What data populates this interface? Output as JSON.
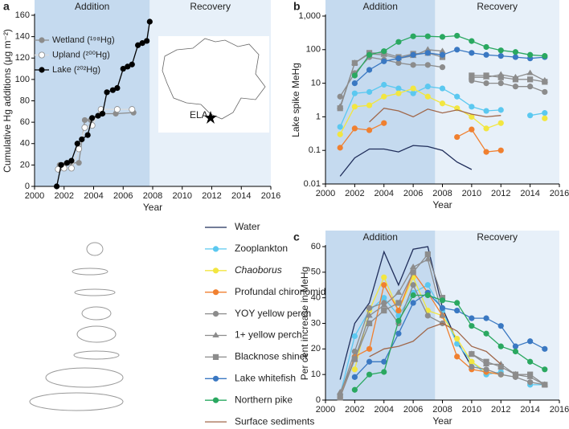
{
  "chart_data": [
    {
      "type": "line",
      "letter": "a",
      "xlabel": "Year",
      "ylabel": "Cumulative Hg additions (μg m⁻²)",
      "xlim": [
        2000,
        2016
      ],
      "xticks": [
        2000,
        2002,
        2004,
        2006,
        2008,
        2010,
        2012,
        2014,
        2016
      ],
      "ylim": [
        0,
        160
      ],
      "yticks": [
        0,
        20,
        40,
        60,
        80,
        100,
        120,
        140,
        160
      ],
      "periods": [
        {
          "label": "Addition",
          "from": 2000,
          "to": 2007.8,
          "color": "#c5daef"
        },
        {
          "label": "Recovery",
          "from": 2007.8,
          "to": 2016,
          "color": "#e7f0f9"
        }
      ],
      "inset_label": "ELA",
      "series": [
        {
          "name": "Wetland (¹⁹⁸Hg)",
          "color": "#8c8c8c",
          "x": [
            2001.7,
            2002,
            2002.5,
            2003,
            2003.4,
            2003.8,
            2004.5,
            2005.5,
            2006.7
          ],
          "values": [
            20,
            20,
            22,
            22,
            62,
            62,
            68,
            68,
            69
          ]
        },
        {
          "name": "Upland (²⁰⁰Hg)",
          "color": "#ffffff",
          "x": [
            2001.6,
            2002,
            2002.5,
            2003,
            2003.4,
            2003.9,
            2004.5,
            2005.6,
            2006.6
          ],
          "values": [
            16,
            17,
            17,
            35,
            55,
            57,
            72,
            72,
            72
          ]
        },
        {
          "name": "Lake (²⁰²Hg)",
          "color": "#000000",
          "x": [
            2001.5,
            2001.8,
            2002.2,
            2002.5,
            2002.9,
            2003.2,
            2003.6,
            2003.9,
            2004.3,
            2004.6,
            2004.9,
            2005.3,
            2005.6,
            2006,
            2006.3,
            2006.6,
            2007,
            2007.3,
            2007.6,
            2007.8
          ],
          "values": [
            0,
            20,
            22,
            24,
            40,
            44,
            48,
            64,
            66,
            68,
            88,
            90,
            92,
            110,
            112,
            114,
            132,
            134,
            136,
            154
          ]
        }
      ]
    },
    {
      "type": "line",
      "letter": "b",
      "xlabel": "Year",
      "ylabel": "Lake spike MeHg",
      "log_scale": true,
      "xlim": [
        2000,
        2016
      ],
      "xticks": [
        2000,
        2002,
        2004,
        2006,
        2008,
        2010,
        2012,
        2014,
        2016
      ],
      "ylim": [
        0.01,
        1000
      ],
      "yticks": [
        0.01,
        0.1,
        1,
        10,
        100,
        {
          "value": 1000,
          "label": "1,000"
        }
      ],
      "periods": [
        {
          "label": "Addition",
          "from": 2000,
          "to": 2007.5,
          "color": "#c5daef"
        },
        {
          "label": "Recovery",
          "from": 2007.5,
          "to": 2016,
          "color": "#e7f0f9"
        }
      ],
      "x": [
        2001,
        2002,
        2003,
        2004,
        2005,
        2006,
        2007,
        2008,
        2009,
        2010,
        2011,
        2012,
        2013,
        2014,
        2015
      ],
      "series": [
        {
          "name": "Water",
          "color": "#1f2d5a",
          "values": [
            0.017,
            0.06,
            0.11,
            0.11,
            0.09,
            0.14,
            0.13,
            0.1,
            0.045,
            0.027,
            null,
            null,
            null,
            null,
            null
          ]
        },
        {
          "name": "Zooplankton",
          "color": "#5bc8f0",
          "marker": "circle",
          "values": [
            0.5,
            5,
            5.5,
            9,
            7,
            5,
            8,
            7,
            4,
            2,
            1.5,
            1.6,
            null,
            1.1,
            1.3
          ]
        },
        {
          "name": "Chaoborus",
          "italic": true,
          "color": "#f2e640",
          "marker": "circle",
          "values": [
            0.3,
            2,
            2.2,
            4,
            5,
            7,
            4,
            2.5,
            1.8,
            1,
            0.45,
            0.65,
            null,
            null,
            0.9
          ]
        },
        {
          "name": "Profundal chironomids",
          "color": "#f08030",
          "marker": "circle",
          "values": [
            0.12,
            0.45,
            0.4,
            0.65,
            null,
            null,
            null,
            null,
            0.25,
            0.42,
            0.09,
            0.1,
            null,
            null,
            null
          ]
        },
        {
          "name": "YOY yellow perch",
          "color": "#8c8c8c",
          "marker": "circle",
          "values": [
            4,
            20,
            60,
            50,
            40,
            35,
            35,
            30,
            null,
            12,
            10,
            10,
            8,
            8,
            5.5
          ]
        },
        {
          "name": "1+ yellow perch",
          "color": "#8c8c8c",
          "marker": "triangle",
          "values": [
            2,
            40,
            75,
            70,
            55,
            65,
            100,
            90,
            null,
            15,
            15,
            18,
            15,
            20,
            12
          ]
        },
        {
          "name": "Blacknose shiner",
          "color": "#8c8c8c",
          "marker": "square",
          "values": [
            1.8,
            40,
            80,
            80,
            60,
            75,
            80,
            60,
            null,
            17,
            17,
            15,
            13,
            13,
            11
          ]
        },
        {
          "name": "Lake whitefish",
          "color": "#3a78c2",
          "marker": "circle",
          "values": [
            null,
            10,
            25,
            45,
            55,
            70,
            80,
            70,
            100,
            80,
            70,
            65,
            60,
            55,
            60
          ]
        },
        {
          "name": "Northern pike",
          "color": "#2aa860",
          "marker": "circle",
          "values": [
            null,
            17,
            70,
            90,
            170,
            250,
            250,
            240,
            260,
            180,
            120,
            95,
            85,
            70,
            65
          ]
        },
        {
          "name": "Surface sediments",
          "color": "#a0674a",
          "values": [
            null,
            null,
            0.7,
            1.8,
            1.5,
            1,
            1.7,
            1.3,
            1.6,
            1.2,
            1,
            1.1,
            null,
            null,
            null
          ]
        }
      ]
    },
    {
      "type": "line",
      "letter": "c",
      "xlabel": "Year",
      "ylabel": "Per cent increase in MeHg",
      "xlim": [
        2000,
        2016
      ],
      "xticks": [
        2000,
        2002,
        2004,
        2006,
        2008,
        2010,
        2012,
        2014,
        2016
      ],
      "ylim": [
        0,
        60
      ],
      "yticks": [
        0,
        10,
        20,
        30,
        40,
        50,
        60
      ],
      "periods": [
        {
          "label": "Addition",
          "from": 2000,
          "to": 2007.5,
          "color": "#c5daef"
        },
        {
          "label": "Recovery",
          "from": 2007.5,
          "to": 2016,
          "color": "#e7f0f9"
        }
      ],
      "x": [
        2001,
        2002,
        2003,
        2004,
        2005,
        2006,
        2007,
        2008,
        2009,
        2010,
        2011,
        2012,
        2013,
        2014,
        2015
      ],
      "series": [
        {
          "values": [
            8,
            30,
            38,
            58,
            45,
            59,
            60,
            36,
            23,
            13,
            null,
            null,
            null,
            null,
            null
          ]
        },
        {
          "values": [
            2,
            25,
            35,
            40,
            33,
            42,
            45,
            35,
            22,
            15,
            10,
            11,
            null,
            6,
            6
          ]
        },
        {
          "values": [
            null,
            12,
            35,
            48,
            35,
            48,
            35,
            33,
            24,
            15,
            11,
            10,
            null,
            null,
            6
          ]
        },
        {
          "values": [
            1,
            17,
            20,
            45,
            35,
            50,
            42,
            33,
            17,
            12,
            11,
            10,
            null,
            null,
            null
          ]
        },
        {
          "values": [
            2,
            19,
            36,
            38,
            30,
            45,
            33,
            30,
            null,
            13,
            12,
            10,
            9,
            7,
            6
          ]
        },
        {
          "values": [
            3,
            16,
            33,
            37,
            42,
            52,
            55,
            33,
            null,
            18,
            14,
            14,
            10,
            9,
            6
          ]
        },
        {
          "values": [
            1,
            16,
            30,
            35,
            38,
            50,
            57,
            40,
            null,
            18,
            15,
            13,
            10,
            10,
            6
          ]
        },
        {
          "values": [
            null,
            9,
            15,
            15,
            26,
            38,
            42,
            36,
            35,
            32,
            32,
            29,
            21,
            23,
            20
          ]
        },
        {
          "values": [
            null,
            4,
            10,
            11,
            31,
            41,
            41,
            39,
            38,
            29,
            26,
            21,
            19,
            15,
            12
          ]
        },
        {
          "values": [
            null,
            null,
            17,
            20,
            21,
            23,
            28,
            30,
            27,
            21,
            19,
            14,
            null,
            null,
            null
          ]
        }
      ]
    }
  ]
}
